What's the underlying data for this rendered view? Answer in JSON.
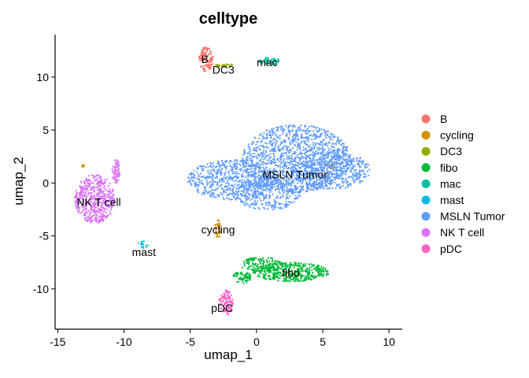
{
  "chart_data": {
    "type": "scatter",
    "title": "celltype",
    "xlabel": "umap_1",
    "ylabel": "umap_2",
    "xlim": [
      -15.2,
      11
    ],
    "ylim": [
      -13.8,
      14
    ],
    "xticks": [
      -15,
      -10,
      -5,
      0,
      5,
      10
    ],
    "xtick_labels": [
      "-15",
      "-10",
      "-5",
      "0",
      "5",
      "10"
    ],
    "yticks": [
      -10,
      -5,
      0,
      5,
      10
    ],
    "ytick_labels": [
      "-10",
      "-5",
      "0",
      "5",
      "10"
    ],
    "grid": false,
    "legend_position": "right",
    "series": [
      {
        "name": "B",
        "color": "#F8766D",
        "label_at": [
          -3.9,
          11.7
        ],
        "blobs": [
          {
            "cx": -3.8,
            "cy": 11.7,
            "rx": 0.55,
            "ry": 1.2,
            "n": 120
          }
        ]
      },
      {
        "name": "cycling",
        "color": "#D39200",
        "label_at": [
          -2.9,
          -4.4
        ],
        "blobs": [
          {
            "cx": -2.9,
            "cy": -4.3,
            "rx": 0.25,
            "ry": 0.9,
            "n": 40
          },
          {
            "cx": 5.6,
            "cy": 1.6,
            "rx": 0.35,
            "ry": 0.25,
            "n": 15
          },
          {
            "cx": -13.1,
            "cy": 1.6,
            "rx": 0.12,
            "ry": 0.15,
            "n": 8
          }
        ]
      },
      {
        "name": "DC3",
        "color": "#93AA00",
        "label_at": [
          -2.5,
          10.7
        ],
        "blobs": [
          {
            "cx": -2.5,
            "cy": 11.1,
            "rx": 0.8,
            "ry": 0.15,
            "n": 25
          }
        ]
      },
      {
        "name": "fibo",
        "color": "#00BA38",
        "label_at": [
          2.6,
          -8.5
        ],
        "blobs": [
          {
            "cx": 2.6,
            "cy": -8.4,
            "rx": 2.9,
            "ry": 0.9,
            "n": 420
          },
          {
            "cx": 0.4,
            "cy": -7.7,
            "rx": 1.6,
            "ry": 0.7,
            "n": 140
          },
          {
            "cx": -1.1,
            "cy": -8.9,
            "rx": 0.7,
            "ry": 0.6,
            "n": 70
          }
        ]
      },
      {
        "name": "mac",
        "color": "#00C19F",
        "label_at": [
          0.8,
          11.4
        ],
        "blobs": [
          {
            "cx": 1.0,
            "cy": 11.5,
            "rx": 0.8,
            "ry": 0.35,
            "n": 50
          }
        ]
      },
      {
        "name": "mast",
        "color": "#00B9E3",
        "label_at": [
          -8.5,
          -6.5
        ],
        "blobs": [
          {
            "cx": -8.6,
            "cy": -5.8,
            "rx": 0.45,
            "ry": 0.35,
            "n": 15
          }
        ]
      },
      {
        "name": "MSLN Tumor",
        "color": "#619CFF",
        "label_at": [
          2.9,
          0.8
        ],
        "blobs": [
          {
            "cx": 3.0,
            "cy": 2.3,
            "rx": 4.1,
            "ry": 3.2,
            "n": 1300
          },
          {
            "cx": 5.6,
            "cy": 1.2,
            "rx": 3.0,
            "ry": 1.8,
            "n": 500
          },
          {
            "cx": -1.8,
            "cy": 0.3,
            "rx": 3.4,
            "ry": 1.9,
            "n": 650
          },
          {
            "cx": 0.9,
            "cy": -1.1,
            "rx": 2.5,
            "ry": 1.5,
            "n": 350
          }
        ]
      },
      {
        "name": "NK T cell",
        "color": "#DB72FB",
        "label_at": [
          -11.9,
          -1.8
        ],
        "blobs": [
          {
            "cx": -12.2,
            "cy": -1.5,
            "rx": 1.5,
            "ry": 2.3,
            "n": 550
          },
          {
            "cx": -10.6,
            "cy": 1.1,
            "rx": 0.3,
            "ry": 1.1,
            "n": 80
          }
        ]
      },
      {
        "name": "pDC",
        "color": "#FF61C3",
        "label_at": [
          -2.6,
          -11.8
        ],
        "blobs": [
          {
            "cx": -2.3,
            "cy": -11.3,
            "rx": 0.55,
            "ry": 1.2,
            "n": 110
          }
        ]
      }
    ]
  }
}
